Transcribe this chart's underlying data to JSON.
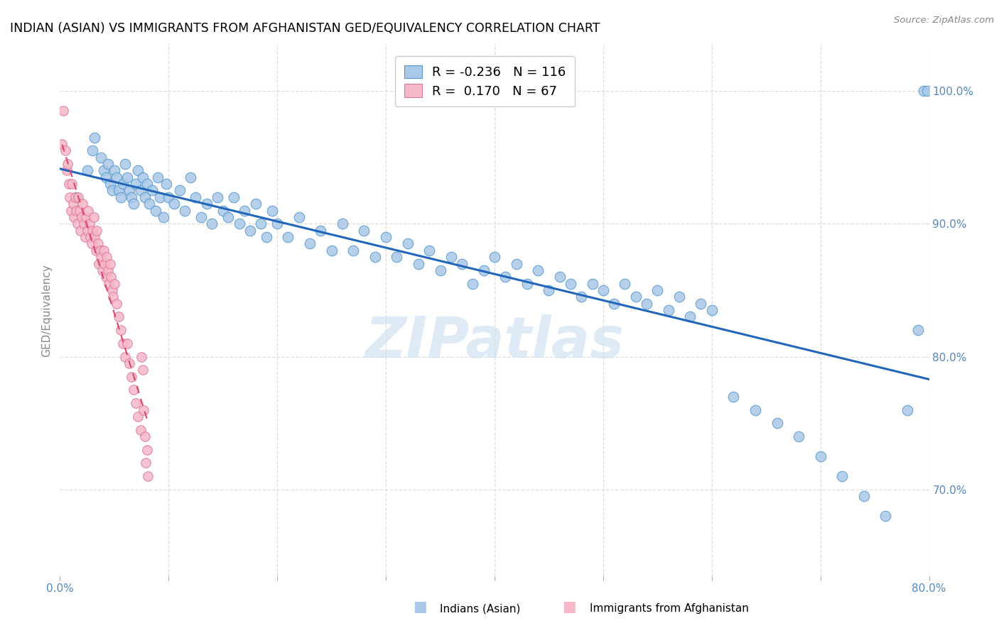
{
  "title": "INDIAN (ASIAN) VS IMMIGRANTS FROM AFGHANISTAN GED/EQUIVALENCY CORRELATION CHART",
  "source": "Source: ZipAtlas.com",
  "ylabel": "GED/Equivalency",
  "right_ytick_labels": [
    "70.0%",
    "80.0%",
    "90.0%",
    "100.0%"
  ],
  "right_ytick_vals": [
    0.7,
    0.8,
    0.9,
    1.0
  ],
  "legend_blue_R": "-0.236",
  "legend_blue_N": "116",
  "legend_pink_R": "0.170",
  "legend_pink_N": "67",
  "legend_blue_label": "Indians (Asian)",
  "legend_pink_label": "Immigrants from Afghanistan",
  "watermark": "ZIPatlas",
  "blue_color": "#aac8e8",
  "blue_edge": "#5599cc",
  "pink_color": "#f5b8c8",
  "pink_edge": "#dd7799",
  "blue_line_color": "#2266bb",
  "pink_line_color": "#dd4466",
  "xlim": [
    0.0,
    0.8
  ],
  "ylim": [
    0.635,
    1.035
  ],
  "blue_dots_x": [
    0.015,
    0.025,
    0.03,
    0.032,
    0.038,
    0.04,
    0.042,
    0.044,
    0.046,
    0.048,
    0.05,
    0.052,
    0.054,
    0.056,
    0.058,
    0.06,
    0.062,
    0.064,
    0.066,
    0.068,
    0.07,
    0.072,
    0.074,
    0.076,
    0.078,
    0.08,
    0.082,
    0.085,
    0.088,
    0.09,
    0.092,
    0.095,
    0.098,
    0.1,
    0.105,
    0.11,
    0.115,
    0.12,
    0.125,
    0.13,
    0.135,
    0.14,
    0.145,
    0.15,
    0.155,
    0.16,
    0.165,
    0.17,
    0.175,
    0.18,
    0.185,
    0.19,
    0.195,
    0.2,
    0.21,
    0.22,
    0.23,
    0.24,
    0.25,
    0.26,
    0.27,
    0.28,
    0.29,
    0.3,
    0.31,
    0.32,
    0.33,
    0.34,
    0.35,
    0.36,
    0.37,
    0.38,
    0.39,
    0.4,
    0.41,
    0.42,
    0.43,
    0.44,
    0.45,
    0.46,
    0.47,
    0.48,
    0.49,
    0.5,
    0.51,
    0.52,
    0.53,
    0.54,
    0.55,
    0.56,
    0.57,
    0.58,
    0.59,
    0.6,
    0.62,
    0.64,
    0.66,
    0.68,
    0.7,
    0.72,
    0.74,
    0.76,
    0.78,
    0.79,
    0.795,
    0.798
  ],
  "blue_dots_y": [
    0.92,
    0.94,
    0.955,
    0.965,
    0.95,
    0.94,
    0.935,
    0.945,
    0.93,
    0.925,
    0.94,
    0.935,
    0.925,
    0.92,
    0.93,
    0.945,
    0.935,
    0.925,
    0.92,
    0.915,
    0.93,
    0.94,
    0.925,
    0.935,
    0.92,
    0.93,
    0.915,
    0.925,
    0.91,
    0.935,
    0.92,
    0.905,
    0.93,
    0.92,
    0.915,
    0.925,
    0.91,
    0.935,
    0.92,
    0.905,
    0.915,
    0.9,
    0.92,
    0.91,
    0.905,
    0.92,
    0.9,
    0.91,
    0.895,
    0.915,
    0.9,
    0.89,
    0.91,
    0.9,
    0.89,
    0.905,
    0.885,
    0.895,
    0.88,
    0.9,
    0.88,
    0.895,
    0.875,
    0.89,
    0.875,
    0.885,
    0.87,
    0.88,
    0.865,
    0.875,
    0.87,
    0.855,
    0.865,
    0.875,
    0.86,
    0.87,
    0.855,
    0.865,
    0.85,
    0.86,
    0.855,
    0.845,
    0.855,
    0.85,
    0.84,
    0.855,
    0.845,
    0.84,
    0.85,
    0.835,
    0.845,
    0.83,
    0.84,
    0.835,
    0.77,
    0.76,
    0.75,
    0.74,
    0.725,
    0.71,
    0.695,
    0.68,
    0.76,
    0.82,
    1.0,
    1.0
  ],
  "pink_dots_x": [
    0.002,
    0.003,
    0.005,
    0.006,
    0.007,
    0.008,
    0.009,
    0.01,
    0.011,
    0.012,
    0.013,
    0.014,
    0.015,
    0.016,
    0.017,
    0.018,
    0.019,
    0.02,
    0.021,
    0.022,
    0.023,
    0.024,
    0.025,
    0.026,
    0.027,
    0.028,
    0.029,
    0.03,
    0.031,
    0.032,
    0.033,
    0.034,
    0.035,
    0.036,
    0.037,
    0.038,
    0.039,
    0.04,
    0.041,
    0.042,
    0.043,
    0.044,
    0.045,
    0.046,
    0.047,
    0.048,
    0.049,
    0.05,
    0.052,
    0.054,
    0.056,
    0.058,
    0.06,
    0.062,
    0.064,
    0.066,
    0.068,
    0.07,
    0.072,
    0.074,
    0.075,
    0.076,
    0.077,
    0.078,
    0.079,
    0.08,
    0.081
  ],
  "pink_dots_y": [
    0.96,
    0.985,
    0.955,
    0.94,
    0.945,
    0.93,
    0.92,
    0.91,
    0.93,
    0.915,
    0.905,
    0.92,
    0.91,
    0.9,
    0.92,
    0.91,
    0.895,
    0.905,
    0.915,
    0.9,
    0.89,
    0.905,
    0.895,
    0.91,
    0.9,
    0.89,
    0.885,
    0.895,
    0.905,
    0.89,
    0.88,
    0.895,
    0.885,
    0.87,
    0.88,
    0.875,
    0.865,
    0.88,
    0.87,
    0.86,
    0.875,
    0.865,
    0.855,
    0.87,
    0.86,
    0.85,
    0.845,
    0.855,
    0.84,
    0.83,
    0.82,
    0.81,
    0.8,
    0.81,
    0.795,
    0.785,
    0.775,
    0.765,
    0.755,
    0.745,
    0.8,
    0.79,
    0.76,
    0.74,
    0.72,
    0.73,
    0.71
  ]
}
